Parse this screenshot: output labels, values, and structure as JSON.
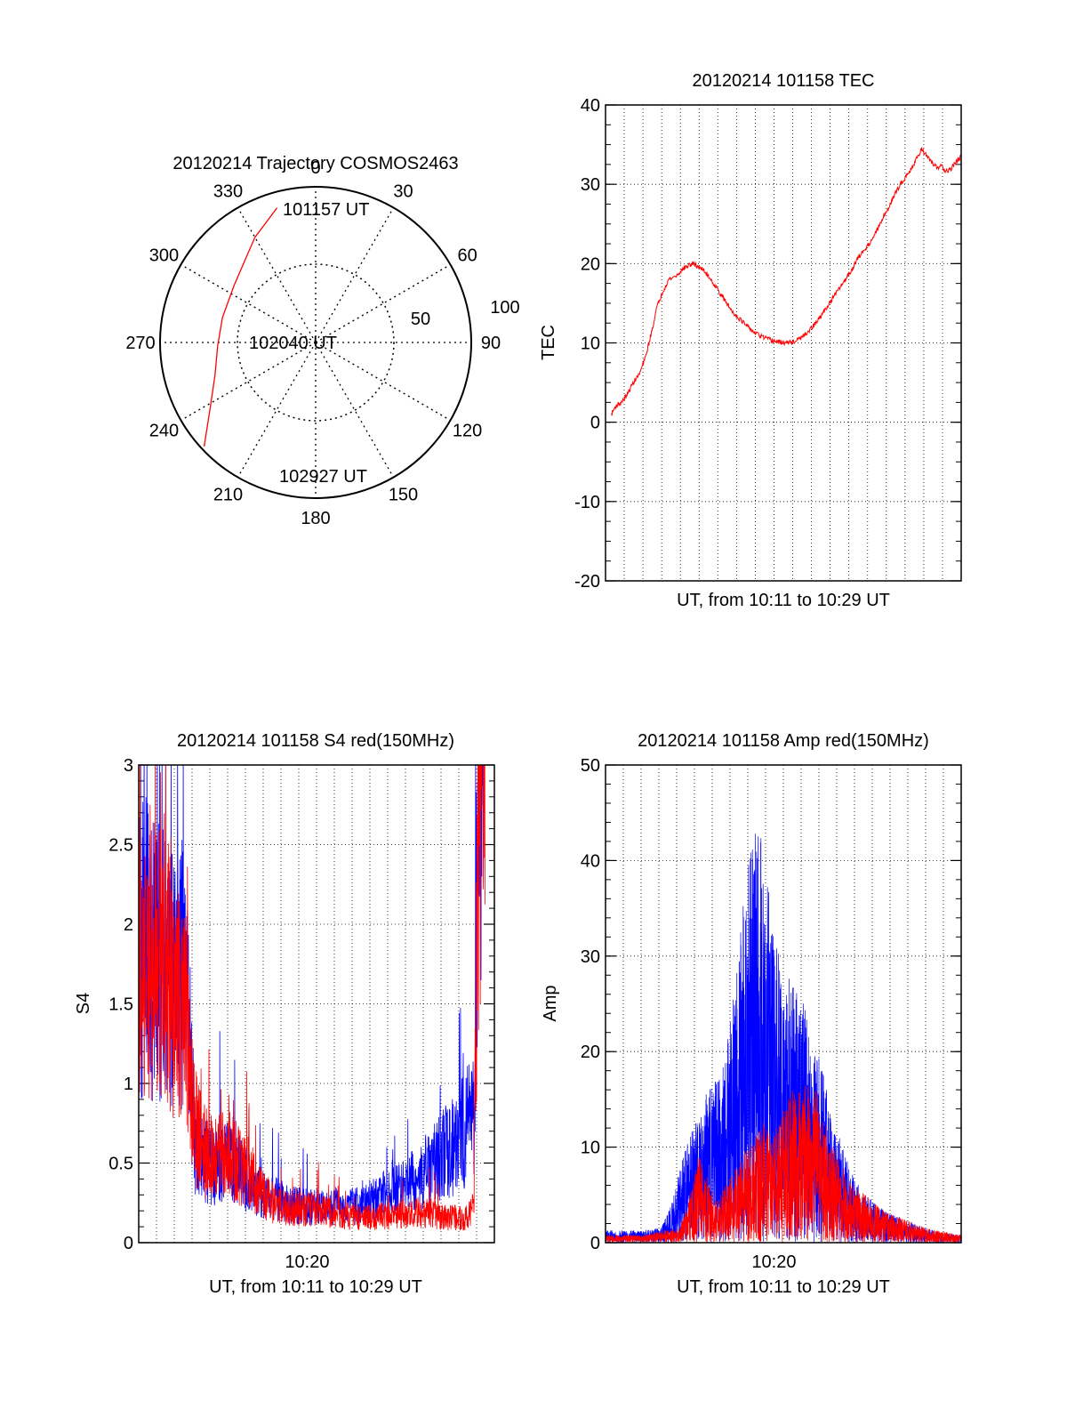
{
  "chart_data": [
    {
      "type": "polar",
      "title": "20120214 Trajectory COSMOS2463",
      "angle_ticks": [
        "0",
        "30",
        "60",
        "90",
        "120",
        "150",
        "180",
        "210",
        "240",
        "270",
        "300",
        "330"
      ],
      "radial_labels": [
        "50",
        "100"
      ],
      "start_label": "101157 UT",
      "mid_label": "102040 UT",
      "end_label": "102927 UT",
      "trajectory": [
        {
          "az": 344,
          "r": 90
        },
        {
          "az": 330,
          "r": 78
        },
        {
          "az": 305,
          "r": 64
        },
        {
          "az": 285,
          "r": 62
        },
        {
          "az": 268,
          "r": 63
        },
        {
          "az": 252,
          "r": 68
        },
        {
          "az": 238,
          "r": 80
        },
        {
          "az": 230,
          "r": 92
        },
        {
          "az": 227,
          "r": 98
        }
      ],
      "line_color": "#ff0000"
    },
    {
      "type": "line",
      "title": "20120214 101158 TEC",
      "xlabel": "UT, from 10:11 to 10:29 UT",
      "ylabel": "TEC",
      "ylim": [
        -20,
        40
      ],
      "yticks": [
        "-20",
        "-10",
        "0",
        "10",
        "20",
        "30",
        "40"
      ],
      "xlim": [
        0,
        18
      ],
      "grid": true,
      "series": [
        {
          "color": "#ff0000",
          "x": [
            0.3,
            0.5,
            0.8,
            1.1,
            1.4,
            1.7,
            2.0,
            2.3,
            2.6,
            2.9,
            3.2,
            3.6,
            4.0,
            4.4,
            4.8,
            5.2,
            5.6,
            6.0,
            6.4,
            6.8,
            7.2,
            7.6,
            8.0,
            8.4,
            8.8,
            9.2,
            9.6,
            10.0,
            10.4,
            10.8,
            11.2,
            11.6,
            12.0,
            12.4,
            12.8,
            13.2,
            13.6,
            14.0,
            14.4,
            14.8,
            15.2,
            15.6,
            16.0,
            16.4,
            16.8,
            17.0,
            17.2,
            17.5,
            17.8,
            18.0
          ],
          "y": [
            1,
            2,
            2.5,
            3.5,
            5,
            6,
            8,
            11,
            14.5,
            16.5,
            18,
            18.5,
            19.5,
            20,
            19.5,
            18.5,
            17,
            15.5,
            14,
            13,
            12,
            11.2,
            10.7,
            10.3,
            10.1,
            10,
            10.2,
            10.8,
            11.8,
            13,
            14.5,
            16,
            17.5,
            19,
            20.8,
            22,
            23.5,
            25.5,
            27.5,
            29.5,
            31,
            32.5,
            34.5,
            33,
            32,
            32.5,
            31.5,
            32,
            33,
            33.5
          ]
        }
      ]
    },
    {
      "type": "line",
      "title": "20120214 101158 S4 red(150MHz)",
      "xlabel": "UT, from 10:11 to 10:29 UT",
      "ylabel": "S4",
      "ylim": [
        0,
        3
      ],
      "yticks": [
        "0",
        "0.5",
        "1",
        "1.5",
        "2",
        "2.5",
        "3"
      ],
      "xtick_label": "10:20",
      "xtick_value": 9,
      "xlim": [
        0,
        19
      ],
      "grid": true,
      "series": [
        {
          "color": "#0000ff",
          "x": [
            0.0,
            0.5,
            1.0,
            1.5,
            2.0,
            2.5,
            3.0,
            3.5,
            4.0,
            4.5,
            5.0,
            5.5,
            6.0,
            6.5,
            7.0,
            7.5,
            8.0,
            8.5,
            9.0,
            9.5,
            10.0,
            10.5,
            11.0,
            11.5,
            12.0,
            12.5,
            13.0,
            13.5,
            14.0,
            14.5,
            15.0,
            15.5,
            16.0,
            16.5,
            17.0,
            17.5,
            17.9,
            18.2,
            18.5
          ],
          "y": [
            1.7,
            1.8,
            1.7,
            1.6,
            1.6,
            1.6,
            0.6,
            0.5,
            0.45,
            0.5,
            0.45,
            0.4,
            0.35,
            0.3,
            0.28,
            0.25,
            0.23,
            0.22,
            0.22,
            0.22,
            0.2,
            0.22,
            0.2,
            0.22,
            0.25,
            0.25,
            0.28,
            0.3,
            0.33,
            0.35,
            0.4,
            0.45,
            0.5,
            0.55,
            0.6,
            0.7,
            0.8,
            3.0,
            3.0
          ]
        },
        {
          "color": "#ff0000",
          "x": [
            0.0,
            0.5,
            1.0,
            1.5,
            2.0,
            2.5,
            3.0,
            3.5,
            4.0,
            4.5,
            5.0,
            5.5,
            6.0,
            6.5,
            7.0,
            7.5,
            8.0,
            8.5,
            9.0,
            9.5,
            10.0,
            10.5,
            11.0,
            11.5,
            12.0,
            12.5,
            13.0,
            13.5,
            14.0,
            14.5,
            15.0,
            15.5,
            16.0,
            16.5,
            17.0,
            17.5,
            17.9,
            18.2,
            18.5
          ],
          "y": [
            1.6,
            1.8,
            1.7,
            1.7,
            1.5,
            1.3,
            0.7,
            0.55,
            0.5,
            0.55,
            0.5,
            0.45,
            0.4,
            0.3,
            0.25,
            0.22,
            0.2,
            0.2,
            0.2,
            0.2,
            0.18,
            0.17,
            0.16,
            0.15,
            0.15,
            0.15,
            0.16,
            0.16,
            0.17,
            0.17,
            0.18,
            0.18,
            0.16,
            0.15,
            0.15,
            0.15,
            0.2,
            3.0,
            3.0
          ]
        }
      ]
    },
    {
      "type": "line",
      "title": "20120214 101158 Amp red(150MHz)",
      "xlabel": "UT, from 10:11 to 10:29 UT",
      "ylabel": "Amp",
      "ylim": [
        0,
        50
      ],
      "yticks": [
        "0",
        "10",
        "20",
        "30",
        "40",
        "50"
      ],
      "xtick_label": "10:20",
      "xtick_value": 9,
      "xlim": [
        0,
        19
      ],
      "grid": true,
      "series": [
        {
          "color": "#0000ff",
          "x": [
            0.0,
            1.0,
            2.0,
            3.0,
            3.5,
            4.0,
            4.5,
            5.0,
            5.5,
            6.0,
            6.5,
            7.0,
            7.5,
            8.0,
            8.5,
            9.0,
            9.5,
            10.0,
            10.5,
            11.0,
            11.5,
            12.0,
            12.5,
            13.0,
            13.5,
            14.0,
            15.0,
            16.0,
            17.0,
            18.0,
            19.0
          ],
          "y": [
            0.8,
            0.8,
            0.8,
            1.0,
            2.5,
            5.0,
            7.0,
            9.0,
            10.0,
            11.0,
            13.0,
            18.0,
            24.0,
            28.0,
            26.0,
            20.0,
            18.0,
            17.0,
            16.0,
            14.0,
            12.0,
            9.0,
            7.0,
            5.0,
            4.0,
            3.0,
            2.0,
            1.5,
            1.0,
            0.6,
            0.5
          ]
        },
        {
          "color": "#ff0000",
          "x": [
            0.0,
            2.0,
            4.0,
            4.5,
            5.0,
            5.5,
            6.0,
            6.5,
            7.0,
            7.5,
            8.0,
            8.5,
            9.0,
            9.5,
            10.0,
            10.5,
            11.0,
            11.5,
            12.0,
            13.0,
            14.0,
            15.0,
            16.0,
            17.0,
            19.0
          ],
          "y": [
            0.5,
            0.5,
            1.0,
            3.0,
            6.0,
            4.0,
            3.0,
            4.0,
            5.0,
            6.0,
            7.0,
            8.0,
            7.0,
            9.0,
            10.0,
            10.0,
            11.0,
            9.0,
            7.0,
            4.0,
            3.0,
            2.0,
            1.5,
            1.0,
            0.5
          ]
        }
      ]
    }
  ]
}
